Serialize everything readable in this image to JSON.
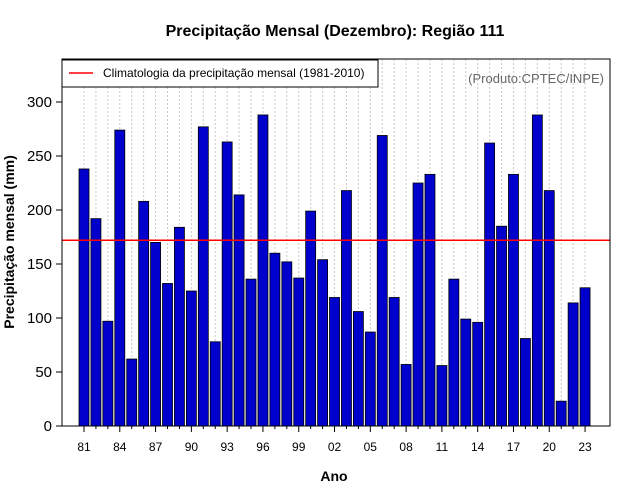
{
  "chart_data": {
    "type": "bar",
    "title": "Precipitação Mensal (Dezembro): Região 111",
    "xlabel": "Ano",
    "ylabel": "Precipitação mensal (mm)",
    "ylim": [
      0,
      330
    ],
    "yticks": [
      0,
      50,
      100,
      150,
      200,
      250,
      300
    ],
    "categories": [
      "81",
      "82",
      "83",
      "84",
      "85",
      "86",
      "87",
      "88",
      "89",
      "90",
      "91",
      "92",
      "93",
      "94",
      "95",
      "96",
      "97",
      "98",
      "99",
      "00",
      "01",
      "02",
      "03",
      "04",
      "05",
      "06",
      "07",
      "08",
      "09",
      "10",
      "11",
      "12",
      "13",
      "14",
      "15",
      "16",
      "17",
      "18",
      "19",
      "20",
      "21",
      "22",
      "23"
    ],
    "xtick_labels": [
      "81",
      "84",
      "87",
      "90",
      "93",
      "96",
      "99",
      "02",
      "05",
      "08",
      "11",
      "14",
      "17",
      "20",
      "23"
    ],
    "values": [
      238,
      192,
      97,
      274,
      62,
      208,
      170,
      132,
      184,
      125,
      277,
      78,
      263,
      214,
      136,
      288,
      160,
      152,
      137,
      199,
      154,
      119,
      218,
      106,
      87,
      269,
      119,
      57,
      225,
      233,
      56,
      136,
      99,
      96,
      262,
      185,
      233,
      81,
      288,
      218,
      23,
      114,
      128
    ],
    "series_name": "Precipitação mensal",
    "bar_color": "#0000CD",
    "climatology": {
      "value": 172,
      "label": "Climatologia da precipitação mensal (1981-2010)",
      "color": "#FF0000"
    },
    "grid": "vertical dotted",
    "legend_position": "top-left",
    "credit": "(Produto:CPTEC/INPE)"
  }
}
